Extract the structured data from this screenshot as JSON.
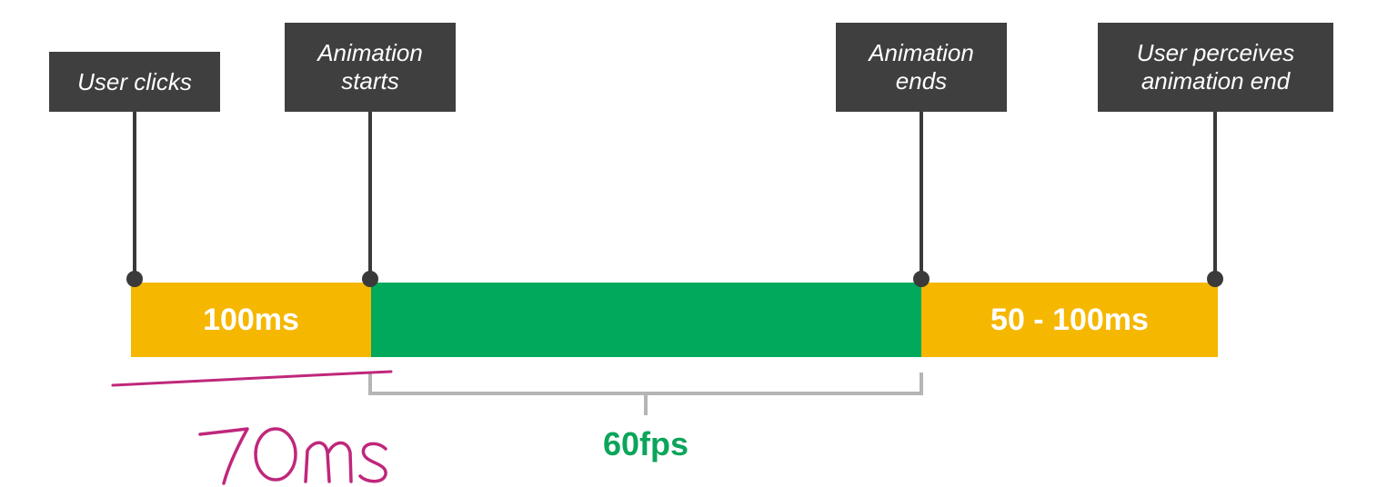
{
  "events": [
    {
      "id": "user-clicks",
      "lines": [
        "User clicks"
      ]
    },
    {
      "id": "animation-starts",
      "lines": [
        "Animation",
        "starts"
      ]
    },
    {
      "id": "animation-ends",
      "lines": [
        "Animation",
        "ends"
      ]
    },
    {
      "id": "user-perceives-end",
      "lines": [
        "User perceives",
        "animation end"
      ]
    }
  ],
  "segments": [
    {
      "id": "response",
      "label": "100ms",
      "color": "#f5b700"
    },
    {
      "id": "animation",
      "label": "",
      "color": "#00a95c"
    },
    {
      "id": "perception",
      "label": "50 - 100ms",
      "color": "#f5b700"
    }
  ],
  "frame_rate": {
    "label": "60fps",
    "color": "#0aa55a"
  },
  "annotation": {
    "text": "70ms",
    "color": "#c0277b"
  }
}
